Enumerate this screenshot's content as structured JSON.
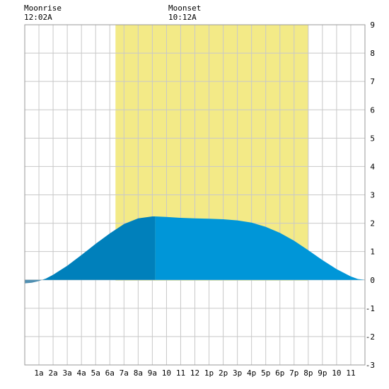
{
  "header": {
    "moonrise_label": "Moonrise",
    "moonrise_time": "12:02A",
    "moonset_label": "Moonset",
    "moonset_time": "10:12A"
  },
  "colors": {
    "daylight": "#f3ea87",
    "grid": "#c8c8c8",
    "border": "#999999",
    "tide_dark": "#0080bb",
    "tide_light": "#0096d8",
    "tide_negative": "#4f8fb2"
  },
  "chart_data": {
    "type": "area",
    "x_unit": "hour of day",
    "x_range": [
      0,
      24
    ],
    "ylim": [
      -3,
      9
    ],
    "grid": true,
    "x_tick_labels": [
      "1a",
      "2a",
      "3a",
      "4a",
      "5a",
      "6a",
      "7a",
      "8a",
      "9a",
      "10",
      "11",
      "12",
      "1p",
      "2p",
      "3p",
      "4p",
      "5p",
      "6p",
      "7p",
      "8p",
      "9p",
      "10",
      "11"
    ],
    "y_tick_labels": [
      "-3",
      "-2",
      "-1",
      "0",
      "1",
      "2",
      "3",
      "4",
      "5",
      "6",
      "7",
      "8",
      "9"
    ],
    "daylight_range_hours": [
      6.4,
      20.0
    ],
    "shade_split_hour": 9.2,
    "x": [
      0,
      0.5,
      1,
      1.5,
      2,
      3,
      4,
      5,
      6,
      7,
      8,
      9,
      9.2,
      10,
      11,
      12,
      13,
      14,
      15,
      16,
      17,
      18,
      19,
      20,
      21,
      22,
      23,
      23.5,
      24
    ],
    "y": [
      -0.12,
      -0.1,
      -0.04,
      0.05,
      0.18,
      0.5,
      0.88,
      1.27,
      1.64,
      1.97,
      2.17,
      2.24,
      2.24,
      2.22,
      2.19,
      2.17,
      2.16,
      2.14,
      2.1,
      2.02,
      1.87,
      1.66,
      1.38,
      1.05,
      0.7,
      0.38,
      0.12,
      0.03,
      0.0
    ]
  }
}
